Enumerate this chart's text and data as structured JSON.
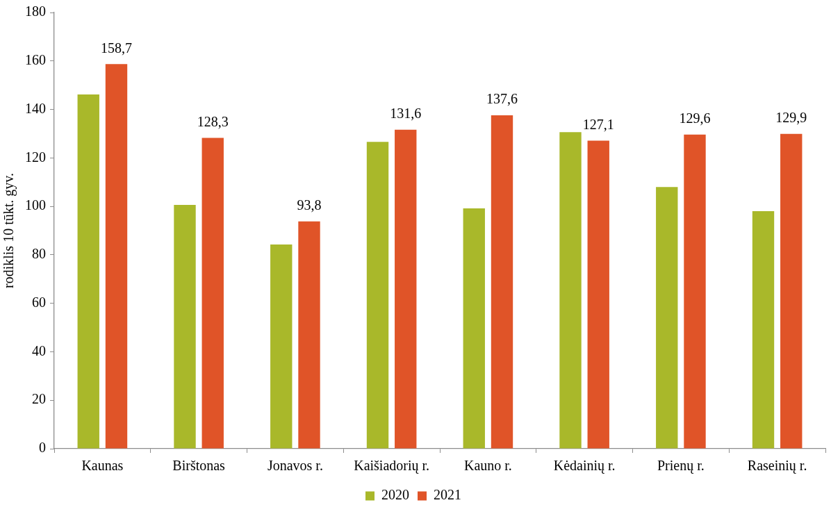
{
  "chart_data": {
    "type": "bar",
    "ylabel": "rodiklis 10 tūkt. gyv.",
    "categories": [
      "Kaunas",
      "Birštonas",
      "Jonavos r.",
      "Kaišiadorių r.",
      "Kauno r.",
      "Kėdainių r.",
      "Prienų r.",
      "Raseinių r."
    ],
    "series": [
      {
        "name": "2020",
        "color": "#a9b82a",
        "values": [
          146.2,
          100.6,
          84.3,
          126.6,
          99.2,
          130.6,
          108.0,
          98.0
        ]
      },
      {
        "name": "2021",
        "color": "#e05428",
        "values": [
          158.7,
          128.3,
          93.8,
          131.6,
          137.6,
          127.1,
          129.6,
          129.9
        ],
        "value_labels": [
          "158,7",
          "128,3",
          "93,8",
          "131,6",
          "137,6",
          "127,1",
          "129,6",
          "129,9"
        ]
      }
    ],
    "ylim": [
      0,
      180
    ],
    "yticks": [
      0,
      20,
      40,
      60,
      80,
      100,
      120,
      140,
      160,
      180
    ],
    "grid": false,
    "legend": "bottom"
  }
}
